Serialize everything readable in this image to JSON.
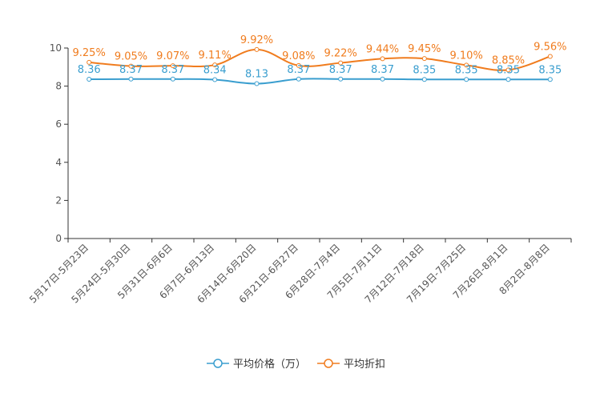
{
  "chart_data": {
    "type": "line",
    "title": "",
    "xlabel": "",
    "ylabel": "",
    "ylim": [
      0,
      10
    ],
    "yticks": [
      0,
      2,
      4,
      6,
      8,
      10
    ],
    "categories": [
      "5月17日-5月23日",
      "5月24日-5月30日",
      "5月31日-6月6日",
      "6月7日-6月13日",
      "6月14日-6月20日",
      "6月21日-6月27日",
      "6月28日-7月4日",
      "7月5日-7月11日",
      "7月12日-7月18日",
      "7月19日-7月25日",
      "7月26日-8月1日",
      "8月2日-8月8日"
    ],
    "series": [
      {
        "name": "平均价格（万）",
        "color": "#3a9ecf",
        "values": [
          8.36,
          8.37,
          8.37,
          8.34,
          8.13,
          8.37,
          8.37,
          8.37,
          8.35,
          8.35,
          8.35,
          8.35
        ],
        "labels": [
          "8.36",
          "8.37",
          "8.37",
          "8.34",
          "8.13",
          "8.37",
          "8.37",
          "8.37",
          "8.35",
          "8.35",
          "8.35",
          "8.35"
        ]
      },
      {
        "name": "平均折扣",
        "color": "#f07c1e",
        "values": [
          9.25,
          9.05,
          9.07,
          9.11,
          9.92,
          9.08,
          9.22,
          9.44,
          9.45,
          9.1,
          8.85,
          9.56
        ],
        "labels": [
          "9.25%",
          "9.05%",
          "9.07%",
          "9.11%",
          "9.92%",
          "9.08%",
          "9.22%",
          "9.44%",
          "9.45%",
          "9.10%",
          "8.85%",
          "9.56%"
        ]
      }
    ],
    "grid": false,
    "legend_position": "bottom-center"
  }
}
